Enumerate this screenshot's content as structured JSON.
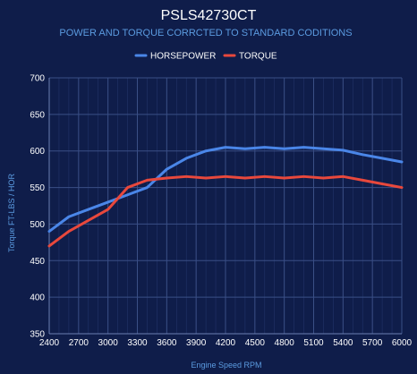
{
  "chart_data": {
    "type": "line",
    "title": "PSLS42730CT",
    "subtitle": "POWER AND TORQUE CORRCTED TO STANDARD CODITIONS",
    "xlabel": "Engine Speed RPM",
    "ylabel": "Torque FT-LBS / HOR",
    "x_ticks": [
      "2400",
      "2700",
      "3000",
      "3300",
      "3600",
      "3900",
      "4200",
      "4500",
      "4800",
      "5100",
      "5400",
      "5700",
      "6000"
    ],
    "y_ticks": [
      "350",
      "400",
      "450",
      "500",
      "550",
      "600",
      "650",
      "700"
    ],
    "xlim": [
      2400,
      6000
    ],
    "ylim": [
      350,
      700
    ],
    "grid": true,
    "legend_position": "top",
    "x": [
      2400,
      2600,
      2800,
      3000,
      3200,
      3400,
      3600,
      3800,
      4000,
      4200,
      4400,
      4600,
      4800,
      5000,
      5200,
      5400,
      5600,
      5800,
      6000
    ],
    "series": [
      {
        "name": "HORSEPOWER",
        "color": "#4a86e8",
        "values": [
          490,
          510,
          520,
          530,
          540,
          550,
          575,
          590,
          600,
          605,
          603,
          605,
          603,
          605,
          603,
          601,
          595,
          590,
          585
        ]
      },
      {
        "name": "TORQUE",
        "color": "#e8483c",
        "values": [
          470,
          490,
          505,
          520,
          550,
          560,
          563,
          565,
          563,
          565,
          563,
          565,
          563,
          565,
          563,
          565,
          560,
          555,
          550
        ]
      }
    ]
  }
}
